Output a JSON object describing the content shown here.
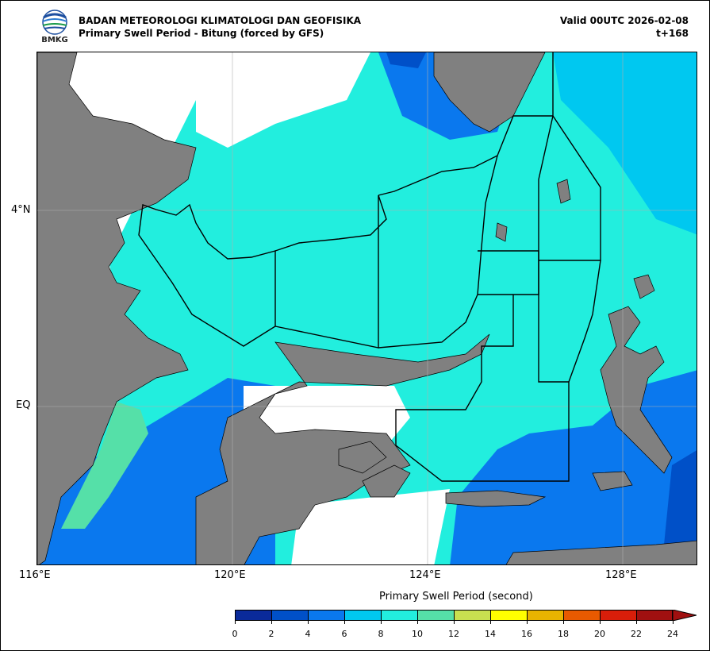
{
  "header": {
    "logo_text": "BMKG",
    "title": "BADAN METEOROLOGI KLIMATOLOGI DAN GEOFISIKA",
    "subtitle": "Primary Swell Period - Bitung (forced by GFS)",
    "valid": "Valid 00UTC 2026-02-08",
    "lead": "t+168"
  },
  "map": {
    "lon_ticks": [
      "116°E",
      "120°E",
      "124°E",
      "128°E"
    ],
    "lat_ticks": [
      "4°N",
      "EQ"
    ],
    "colors": {
      "land": "#808080",
      "sea_8_10": "#22eede",
      "sea_6_8": "#00c8f0",
      "sea_4_6": "#0a78ee",
      "sea_2_4": "#0050c8",
      "sea_10_12": "#55e0a8",
      "no_data": "#ffffff"
    }
  },
  "colorbar": {
    "title": "Primary Swell Period (second)",
    "ticks": [
      "0",
      "2",
      "4",
      "6",
      "8",
      "10",
      "12",
      "14",
      "16",
      "18",
      "20",
      "22",
      "24"
    ],
    "colors": [
      "#0a2a9a",
      "#0050c8",
      "#0a78ee",
      "#00c8f0",
      "#22eede",
      "#55e0a8",
      "#c8e050",
      "#ffff00",
      "#e8b400",
      "#e85a00",
      "#d81e0a",
      "#a01010"
    ]
  }
}
